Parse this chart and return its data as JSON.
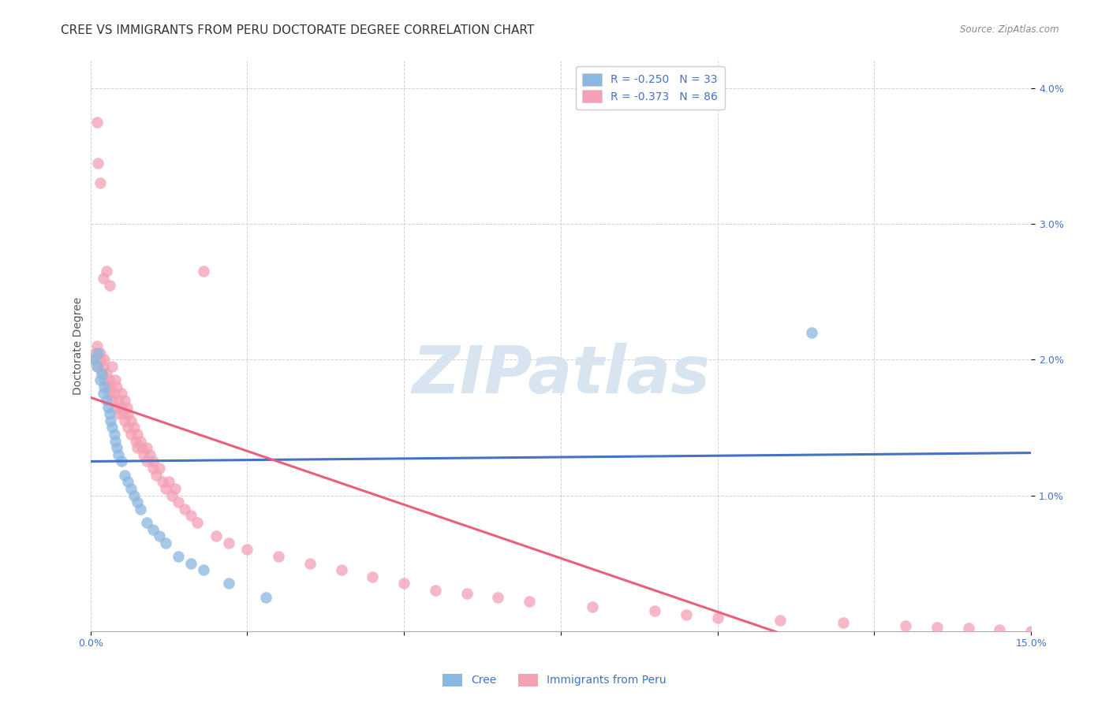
{
  "title": "CREE VS IMMIGRANTS FROM PERU DOCTORATE DEGREE CORRELATION CHART",
  "source": "Source: ZipAtlas.com",
  "ylabel": "Doctorate Degree",
  "xlim": [
    0.0,
    15.0
  ],
  "ylim": [
    0.0,
    4.2
  ],
  "ytick_vals": [
    1.0,
    2.0,
    3.0,
    4.0
  ],
  "ytick_labels": [
    "1.0%",
    "2.0%",
    "3.0%",
    "4.0%"
  ],
  "xtick_vals": [
    0.0,
    2.5,
    5.0,
    7.5,
    10.0,
    12.5,
    15.0
  ],
  "xtick_labels": [
    "0.0%",
    "",
    "",
    "",
    "",
    "",
    "15.0%"
  ],
  "watermark": "ZIPatlas",
  "legend_cree_R": "R = -0.250",
  "legend_cree_N": "N = 33",
  "legend_peru_R": "R = -0.373",
  "legend_peru_N": "N = 86",
  "color_cree": "#8ab8e0",
  "color_peru": "#f4a0b5",
  "color_cree_line": "#4472c4",
  "color_peru_line": "#e8607a",
  "cree_x": [
    0.05,
    0.1,
    0.12,
    0.15,
    0.18,
    0.2,
    0.22,
    0.25,
    0.28,
    0.3,
    0.32,
    0.35,
    0.38,
    0.4,
    0.42,
    0.45,
    0.5,
    0.55,
    0.6,
    0.65,
    0.7,
    0.75,
    0.8,
    0.9,
    1.0,
    1.1,
    1.2,
    1.4,
    1.6,
    1.8,
    2.2,
    2.8,
    11.5
  ],
  "cree_y": [
    2.0,
    1.95,
    2.05,
    1.85,
    1.9,
    1.75,
    1.8,
    1.7,
    1.65,
    1.6,
    1.55,
    1.5,
    1.45,
    1.4,
    1.35,
    1.3,
    1.25,
    1.15,
    1.1,
    1.05,
    1.0,
    0.95,
    0.9,
    0.8,
    0.75,
    0.7,
    0.65,
    0.55,
    0.5,
    0.45,
    0.35,
    0.25,
    2.2
  ],
  "peru_x": [
    0.05,
    0.08,
    0.1,
    0.1,
    0.12,
    0.12,
    0.15,
    0.15,
    0.15,
    0.18,
    0.2,
    0.2,
    0.22,
    0.22,
    0.25,
    0.25,
    0.28,
    0.3,
    0.3,
    0.3,
    0.32,
    0.35,
    0.35,
    0.38,
    0.4,
    0.4,
    0.42,
    0.45,
    0.45,
    0.5,
    0.5,
    0.52,
    0.55,
    0.55,
    0.58,
    0.6,
    0.6,
    0.65,
    0.65,
    0.7,
    0.72,
    0.75,
    0.75,
    0.8,
    0.82,
    0.85,
    0.9,
    0.9,
    0.95,
    1.0,
    1.0,
    1.05,
    1.1,
    1.15,
    1.2,
    1.25,
    1.3,
    1.35,
    1.4,
    1.5,
    1.6,
    1.7,
    1.8,
    2.0,
    2.2,
    2.5,
    3.0,
    3.5,
    4.0,
    4.5,
    5.0,
    5.5,
    6.0,
    6.5,
    7.0,
    8.0,
    9.0,
    9.5,
    10.0,
    11.0,
    12.0,
    13.0,
    13.5,
    14.0,
    14.5,
    15.0
  ],
  "peru_y": [
    2.0,
    2.05,
    2.1,
    3.75,
    1.95,
    3.45,
    2.0,
    2.05,
    3.3,
    1.9,
    1.95,
    2.6,
    1.85,
    2.0,
    1.9,
    2.65,
    1.8,
    2.55,
    1.85,
    1.75,
    1.8,
    1.7,
    1.95,
    1.75,
    1.85,
    1.65,
    1.8,
    1.7,
    1.6,
    1.75,
    1.65,
    1.6,
    1.7,
    1.55,
    1.65,
    1.6,
    1.5,
    1.55,
    1.45,
    1.5,
    1.4,
    1.45,
    1.35,
    1.4,
    1.35,
    1.3,
    1.35,
    1.25,
    1.3,
    1.2,
    1.25,
    1.15,
    1.2,
    1.1,
    1.05,
    1.1,
    1.0,
    1.05,
    0.95,
    0.9,
    0.85,
    0.8,
    2.65,
    0.7,
    0.65,
    0.6,
    0.55,
    0.5,
    0.45,
    0.4,
    0.35,
    0.3,
    0.28,
    0.25,
    0.22,
    0.18,
    0.15,
    0.12,
    0.1,
    0.08,
    0.06,
    0.04,
    0.03,
    0.02,
    0.01,
    0.0
  ],
  "background_color": "#ffffff",
  "grid_color": "#cccccc",
  "title_fontsize": 11,
  "axis_label_fontsize": 10,
  "tick_fontsize": 9,
  "legend_fontsize": 10,
  "watermark_color": "#d8e4f0",
  "watermark_fontsize": 60
}
